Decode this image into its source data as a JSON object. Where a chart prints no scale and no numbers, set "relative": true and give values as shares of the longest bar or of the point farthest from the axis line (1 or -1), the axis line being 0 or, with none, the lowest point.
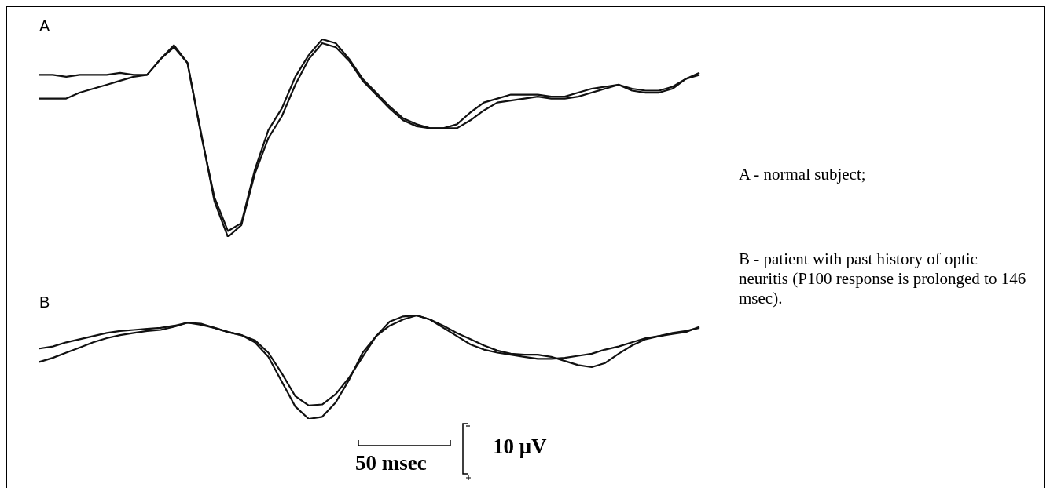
{
  "chart_data": [
    {
      "type": "line",
      "title": "A",
      "relative": true,
      "marker": "none",
      "legend": false,
      "categories": [
        null,
        null,
        null,
        null,
        null,
        null,
        null,
        null,
        null,
        null,
        null,
        null,
        null,
        null,
        null,
        null,
        null,
        null,
        null,
        null,
        null,
        null,
        null,
        null,
        null,
        null,
        null,
        null,
        null,
        null,
        null,
        null,
        null,
        null,
        null,
        null,
        null,
        null,
        null,
        null,
        null,
        null,
        null,
        null,
        null,
        null,
        null,
        null,
        null,
        null
      ],
      "series": [
        {
          "color": "#111111",
          "values": [
            0.82,
            0.82,
            0.81,
            0.82,
            0.82,
            0.82,
            0.83,
            0.82,
            0.82,
            0.9,
            0.97,
            0.88,
            0.52,
            0.2,
            0.03,
            0.07,
            0.34,
            0.54,
            0.65,
            0.81,
            0.92,
            1,
            0.98,
            0.9,
            0.8,
            0.73,
            0.66,
            0.6,
            0.57,
            0.55,
            0.55,
            0.57,
            0.63,
            0.68,
            0.7,
            0.72,
            0.72,
            0.72,
            0.71,
            0.71,
            0.73,
            0.75,
            0.76,
            0.77,
            0.75,
            0.74,
            0.74,
            0.76,
            0.8,
            0.83
          ]
        },
        {
          "color": "#111111",
          "values": [
            0.7,
            0.7,
            0.7,
            0.73,
            0.75,
            0.77,
            0.79,
            0.81,
            0.82,
            0.9,
            0.96,
            0.88,
            0.53,
            0.18,
            0,
            0.06,
            0.32,
            0.5,
            0.61,
            0.77,
            0.9,
            0.98,
            0.96,
            0.89,
            0.79,
            0.72,
            0.65,
            0.59,
            0.56,
            0.55,
            0.55,
            0.55,
            0.59,
            0.64,
            0.68,
            0.69,
            0.7,
            0.71,
            0.7,
            0.7,
            0.71,
            0.73,
            0.75,
            0.77,
            0.74,
            0.73,
            0.73,
            0.75,
            0.8,
            0.82
          ]
        }
      ],
      "annotations": [
        "A - normal subject;"
      ]
    },
    {
      "type": "line",
      "title": "B",
      "relative": true,
      "marker": "none",
      "legend": false,
      "categories": [
        null,
        null,
        null,
        null,
        null,
        null,
        null,
        null,
        null,
        null,
        null,
        null,
        null,
        null,
        null,
        null,
        null,
        null,
        null,
        null,
        null,
        null,
        null,
        null,
        null,
        null,
        null,
        null,
        null,
        null,
        null,
        null,
        null,
        null,
        null,
        null,
        null,
        null,
        null,
        null,
        null,
        null,
        null,
        null,
        null,
        null,
        null,
        null,
        null,
        null
      ],
      "series": [
        {
          "color": "#111111",
          "values": [
            0.68,
            0.7,
            0.74,
            0.77,
            0.8,
            0.83,
            0.85,
            0.86,
            0.87,
            0.88,
            0.9,
            0.93,
            0.92,
            0.88,
            0.84,
            0.81,
            0.76,
            0.64,
            0.44,
            0.22,
            0.13,
            0.14,
            0.24,
            0.4,
            0.6,
            0.8,
            0.94,
            0.99,
            1,
            0.96,
            0.88,
            0.8,
            0.72,
            0.67,
            0.64,
            0.62,
            0.6,
            0.58,
            0.58,
            0.59,
            0.61,
            0.63,
            0.67,
            0.7,
            0.74,
            0.78,
            0.8,
            0.82,
            0.84,
            0.89
          ]
        },
        {
          "color": "#111111",
          "values": [
            0.55,
            0.59,
            0.64,
            0.69,
            0.74,
            0.78,
            0.81,
            0.83,
            0.85,
            0.86,
            0.89,
            0.93,
            0.91,
            0.88,
            0.84,
            0.81,
            0.74,
            0.6,
            0.36,
            0.12,
            0,
            0.02,
            0.16,
            0.38,
            0.64,
            0.8,
            0.9,
            0.96,
            1,
            0.96,
            0.9,
            0.83,
            0.77,
            0.71,
            0.66,
            0.63,
            0.62,
            0.62,
            0.6,
            0.56,
            0.52,
            0.5,
            0.54,
            0.63,
            0.71,
            0.77,
            0.8,
            0.83,
            0.85,
            0.88
          ]
        }
      ],
      "annotations": [
        "B - patient with past history of optic neuritis (P100 response is prolonged to 146 msec).",
        "50 msec",
        "10 μV"
      ]
    }
  ]
}
